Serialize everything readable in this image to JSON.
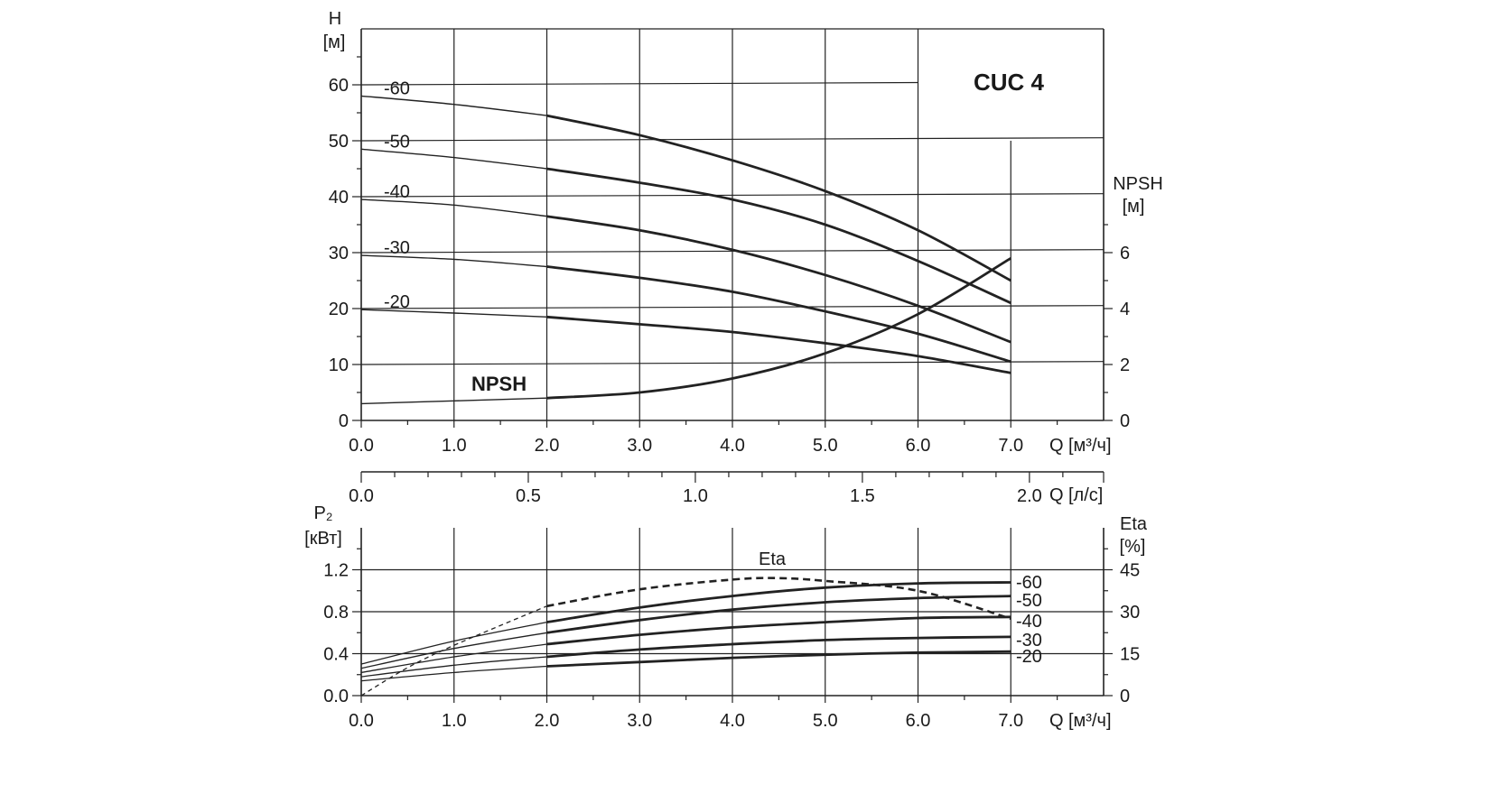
{
  "chart_data": [
    {
      "type": "line",
      "title": "CUC 4",
      "ylabel": "H",
      "yunit": "[м]",
      "xlabel": "Q",
      "xunit": "[м³/ч]",
      "xlim": [
        0,
        8
      ],
      "ylim": [
        0,
        70
      ],
      "x_ticks": [
        "0.0",
        "1.0",
        "2.0",
        "3.0",
        "4.0",
        "5.0",
        "6.0",
        "7.0"
      ],
      "y_ticks": [
        "0",
        "10",
        "20",
        "30",
        "40",
        "50",
        "60"
      ],
      "y2label": "NPSH",
      "y2unit": "[м]",
      "y2lim": [
        0,
        14
      ],
      "y2_ticks": [
        "0",
        "2",
        "4",
        "6"
      ],
      "grid": true,
      "series": [
        {
          "name": "-60",
          "x": [
            0,
            1,
            2,
            3,
            4,
            5,
            6,
            7
          ],
          "values": [
            58,
            56.5,
            54.5,
            51,
            46.5,
            41,
            34,
            25
          ]
        },
        {
          "name": "-50",
          "x": [
            0,
            1,
            2,
            3,
            4,
            5,
            6,
            7
          ],
          "values": [
            48.5,
            47,
            45,
            42.5,
            39.5,
            35,
            28.5,
            21
          ]
        },
        {
          "name": "-40",
          "x": [
            0,
            1,
            2,
            3,
            4,
            5,
            6,
            7
          ],
          "values": [
            39.5,
            38.5,
            36.5,
            34,
            30.5,
            26,
            20.5,
            14
          ]
        },
        {
          "name": "-30",
          "x": [
            0,
            1,
            2,
            3,
            4,
            5,
            6,
            7
          ],
          "values": [
            29.5,
            28.8,
            27.5,
            25.5,
            23,
            19.5,
            15.5,
            10.5
          ]
        },
        {
          "name": "-20",
          "x": [
            0,
            1,
            2,
            3,
            4,
            5,
            6,
            7
          ],
          "values": [
            19.8,
            19.2,
            18.5,
            17.2,
            15.8,
            13.8,
            11.5,
            8.5
          ]
        },
        {
          "name": "NPSH",
          "axis": "y2",
          "x": [
            0,
            1,
            2,
            3,
            4,
            5,
            6,
            7
          ],
          "values": [
            0.6,
            0.7,
            0.8,
            1.0,
            1.5,
            2.4,
            3.8,
            5.8
          ]
        }
      ]
    },
    {
      "type": "axis",
      "xlabel": "Q",
      "xunit": "[л/с]",
      "xlim": [
        0,
        2.222
      ],
      "x_ticks": [
        "0.0",
        "0.5",
        "1.0",
        "1.5",
        "2.0"
      ]
    },
    {
      "type": "line",
      "ylabel": "P₂",
      "yunit": "[кВт]",
      "xlabel": "Q",
      "xunit": "[м³/ч]",
      "xlim": [
        0,
        8
      ],
      "ylim": [
        0,
        1.6
      ],
      "x_ticks": [
        "0.0",
        "1.0",
        "2.0",
        "3.0",
        "4.0",
        "5.0",
        "6.0",
        "7.0"
      ],
      "y_ticks": [
        "0.0",
        "0.4",
        "0.8",
        "1.2"
      ],
      "y2label": "Eta",
      "y2unit": "[%]",
      "y2lim": [
        0,
        60
      ],
      "y2_ticks": [
        "0",
        "15",
        "30",
        "45"
      ],
      "grid": true,
      "series": [
        {
          "name": "-60",
          "x": [
            0,
            1,
            2,
            3,
            4,
            5,
            6,
            7
          ],
          "values": [
            0.3,
            0.52,
            0.7,
            0.84,
            0.95,
            1.03,
            1.07,
            1.08
          ]
        },
        {
          "name": "-50",
          "x": [
            0,
            1,
            2,
            3,
            4,
            5,
            6,
            7
          ],
          "values": [
            0.26,
            0.45,
            0.6,
            0.72,
            0.82,
            0.89,
            0.93,
            0.95
          ]
        },
        {
          "name": "-40",
          "x": [
            0,
            1,
            2,
            3,
            4,
            5,
            6,
            7
          ],
          "values": [
            0.22,
            0.37,
            0.49,
            0.58,
            0.65,
            0.7,
            0.74,
            0.75
          ]
        },
        {
          "name": "-30",
          "x": [
            0,
            1,
            2,
            3,
            4,
            5,
            6,
            7
          ],
          "values": [
            0.18,
            0.29,
            0.37,
            0.44,
            0.49,
            0.53,
            0.55,
            0.56
          ]
        },
        {
          "name": "-20",
          "x": [
            0,
            1,
            2,
            3,
            4,
            5,
            6,
            7
          ],
          "values": [
            0.14,
            0.22,
            0.28,
            0.32,
            0.36,
            0.39,
            0.41,
            0.42
          ]
        },
        {
          "name": "Eta",
          "axis": "y2",
          "style": "dashed",
          "x": [
            0,
            0.5,
            1,
            2,
            3,
            4,
            4.5,
            5,
            6,
            7
          ],
          "values": [
            0,
            10,
            18,
            32,
            38,
            41.5,
            42,
            41,
            37.5,
            27.5
          ]
        }
      ]
    }
  ]
}
